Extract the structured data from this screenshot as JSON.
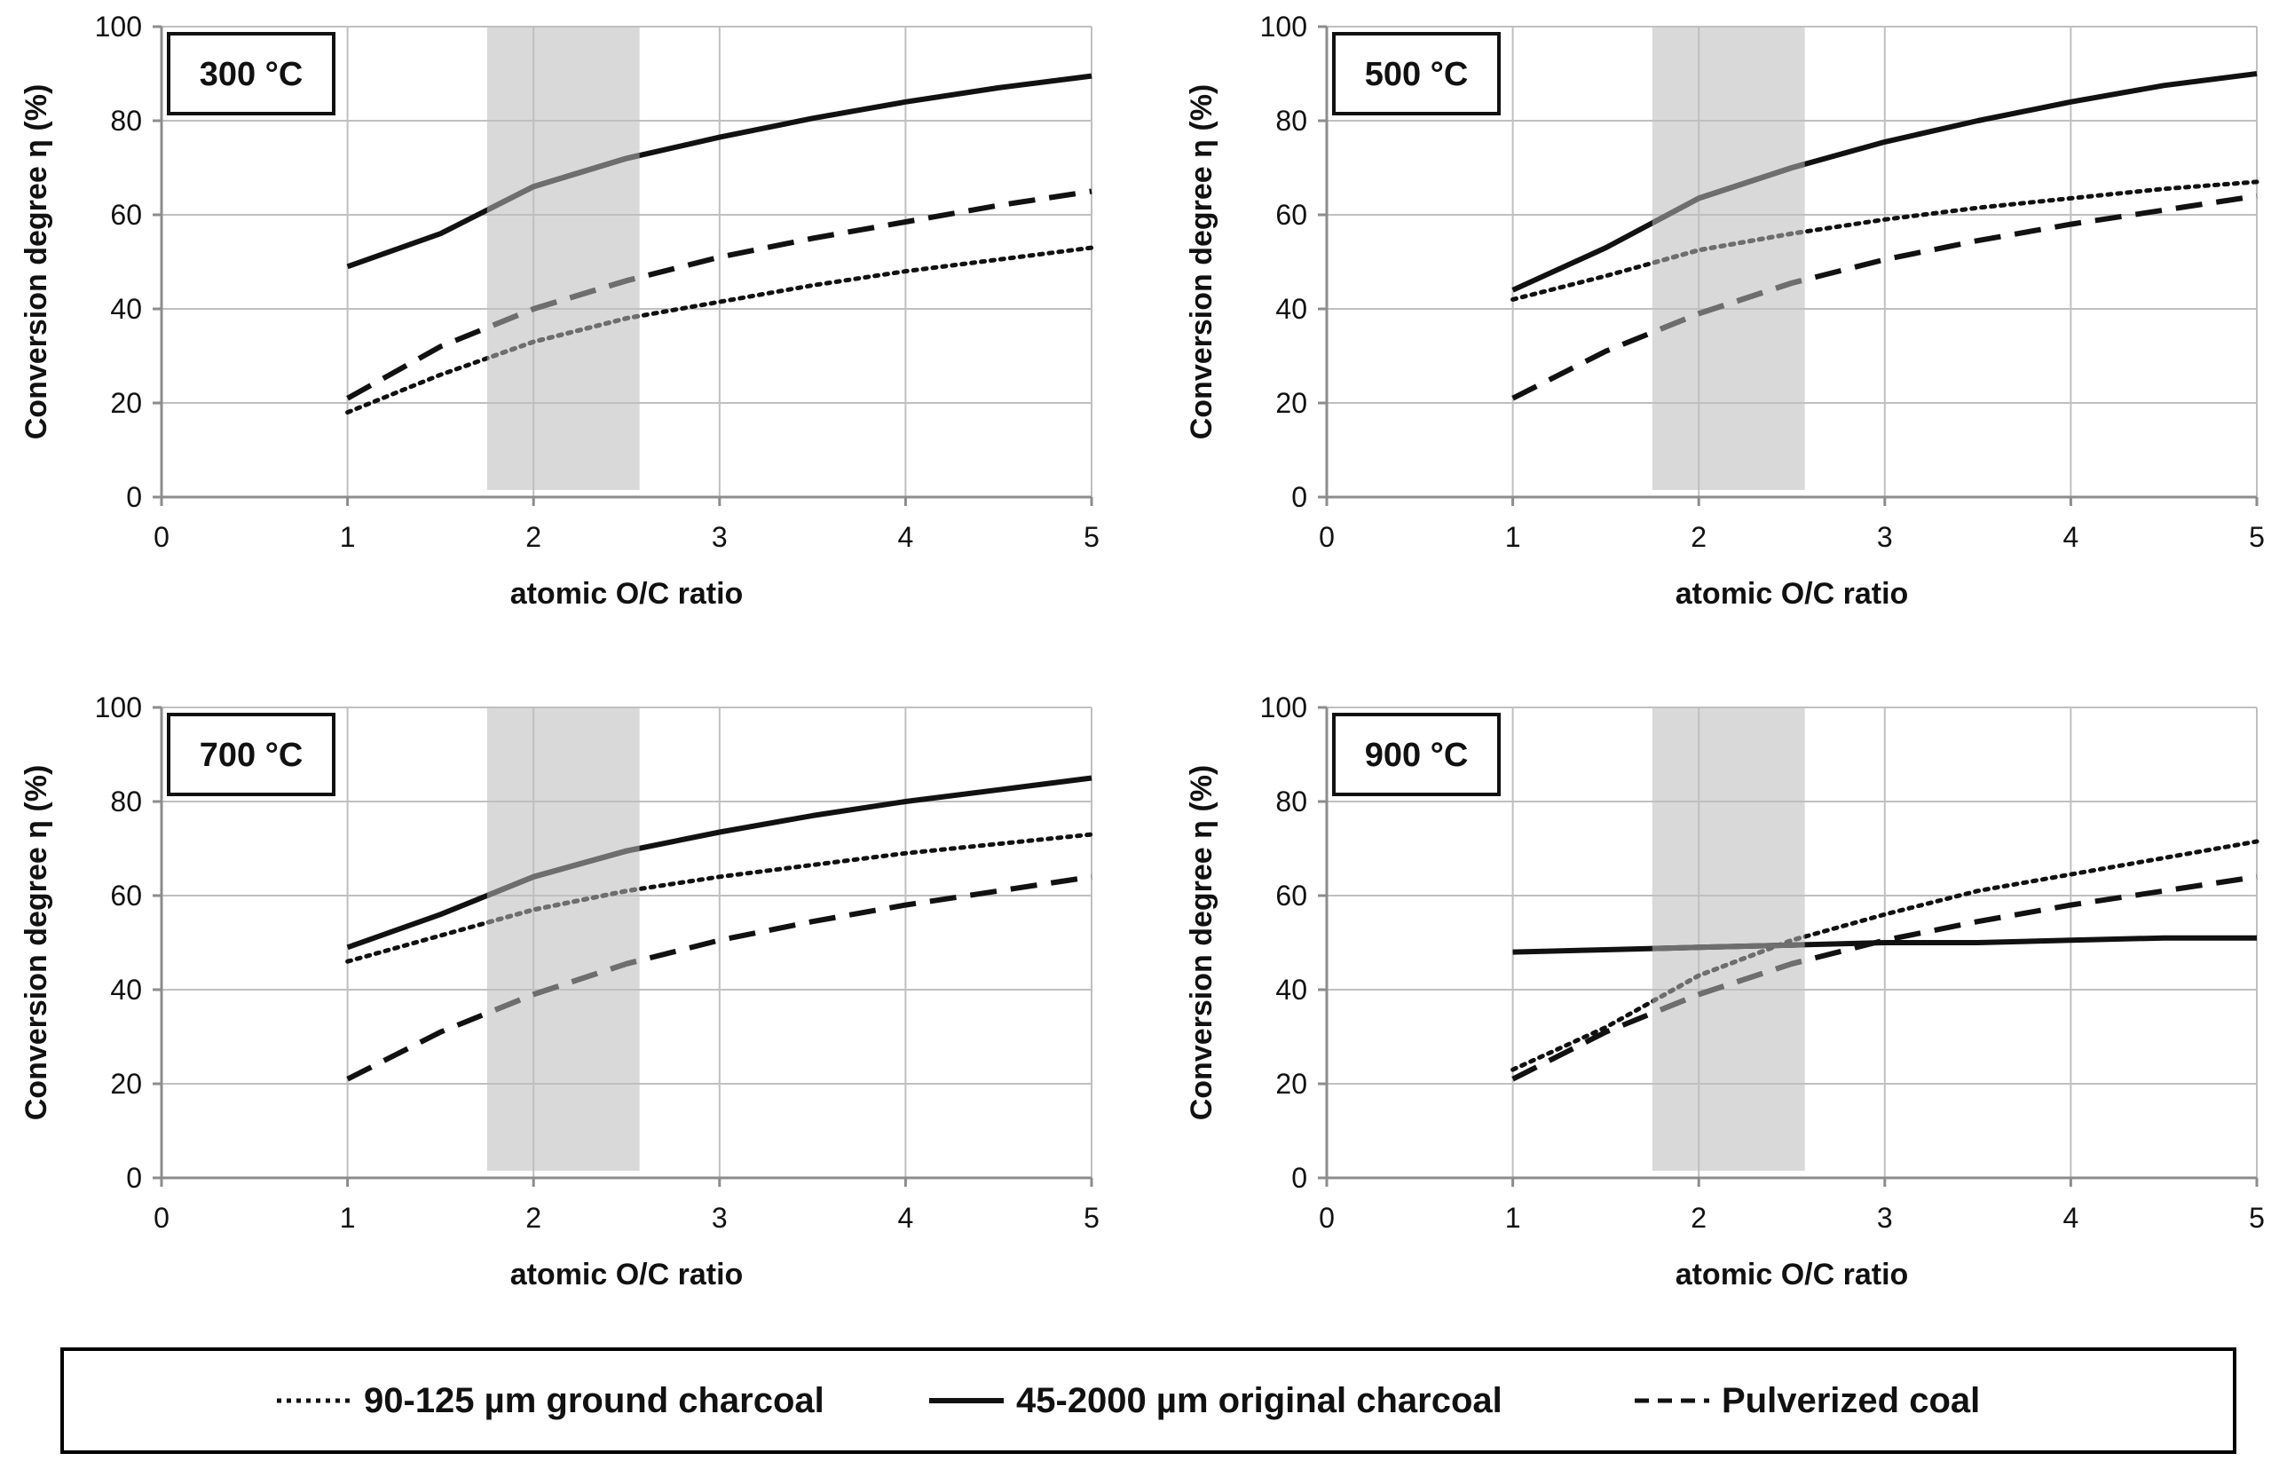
{
  "colors": {
    "line": "#111111",
    "grid": "#bfbfbf",
    "axis": "#8c8c8c",
    "band": "#d9d9d9",
    "in_band_line": "#6e6e6e"
  },
  "legend": {
    "items": [
      {
        "label": "90-125 µm ground charcoal",
        "style": "dotted"
      },
      {
        "label": "45-2000 µm original charcoal",
        "style": "solid"
      },
      {
        "label": "Pulverized coal",
        "style": "dashed"
      }
    ]
  },
  "chart_data": [
    {
      "type": "line",
      "title": "300 °C",
      "xlabel": "atomic  O/C  ratio",
      "ylabel": "Conversion  degree  η (%)",
      "xlim": [
        0,
        5
      ],
      "ylim": [
        0,
        100
      ],
      "xticks": [
        "0",
        "1",
        "2",
        "3",
        "4",
        "5"
      ],
      "yticks": [
        "0",
        "20",
        "40",
        "60",
        "80",
        "100"
      ],
      "shaded_region": [
        1.75,
        2.57
      ],
      "x": [
        1,
        1.5,
        2,
        2.5,
        3,
        3.5,
        4,
        4.5,
        5
      ],
      "series": [
        {
          "name": "90-125 µm ground charcoal",
          "style": "dotted",
          "values": [
            18,
            26,
            33,
            38,
            41.5,
            45,
            48,
            50.5,
            53
          ]
        },
        {
          "name": "45-2000 µm original charcoal",
          "style": "solid",
          "values": [
            49,
            56,
            66,
            72,
            76.5,
            80.5,
            84,
            87,
            89.5
          ]
        },
        {
          "name": "Pulverized coal",
          "style": "dashed",
          "values": [
            21,
            32,
            40,
            46,
            51,
            55,
            58.5,
            62,
            65
          ]
        }
      ]
    },
    {
      "type": "line",
      "title": "500 °C",
      "xlabel": "atomic  O/C  ratio",
      "ylabel": "Conversion  degree  η (%)",
      "xlim": [
        0,
        5
      ],
      "ylim": [
        0,
        100
      ],
      "xticks": [
        "0",
        "1",
        "2",
        "3",
        "4",
        "5"
      ],
      "yticks": [
        "0",
        "20",
        "40",
        "60",
        "80",
        "100"
      ],
      "shaded_region": [
        1.75,
        2.57
      ],
      "x": [
        1,
        1.5,
        2,
        2.5,
        3,
        3.5,
        4,
        4.5,
        5
      ],
      "series": [
        {
          "name": "90-125 µm ground charcoal",
          "style": "dotted",
          "values": [
            42,
            47,
            52.5,
            56,
            59,
            61.5,
            63.5,
            65.5,
            67
          ]
        },
        {
          "name": "45-2000 µm original charcoal",
          "style": "solid",
          "values": [
            44,
            53,
            63.5,
            70,
            75.5,
            80,
            84,
            87.5,
            90
          ]
        },
        {
          "name": "Pulverized coal",
          "style": "dashed",
          "values": [
            21,
            31,
            39,
            45.5,
            50.5,
            54.5,
            58,
            61,
            64
          ]
        }
      ]
    },
    {
      "type": "line",
      "title": "700 °C",
      "xlabel": "atomic  O/C  ratio",
      "ylabel": "Conversion  degree  η (%)",
      "xlim": [
        0,
        5
      ],
      "ylim": [
        0,
        100
      ],
      "xticks": [
        "0",
        "1",
        "2",
        "3",
        "4",
        "5"
      ],
      "yticks": [
        "0",
        "20",
        "40",
        "60",
        "80",
        "100"
      ],
      "shaded_region": [
        1.75,
        2.57
      ],
      "x": [
        1,
        1.5,
        2,
        2.5,
        3,
        3.5,
        4,
        4.5,
        5
      ],
      "series": [
        {
          "name": "90-125 µm ground charcoal",
          "style": "dotted",
          "values": [
            46,
            51.5,
            57,
            61,
            64,
            66.5,
            69,
            71,
            73
          ]
        },
        {
          "name": "45-2000 µm original charcoal",
          "style": "solid",
          "values": [
            49,
            56,
            64,
            69.5,
            73.5,
            77,
            80,
            82.5,
            85
          ]
        },
        {
          "name": "Pulverized coal",
          "style": "dashed",
          "values": [
            21,
            31,
            39,
            45.5,
            50.5,
            54.5,
            58,
            61,
            64
          ]
        }
      ]
    },
    {
      "type": "line",
      "title": "900 °C",
      "xlabel": "atomic  O/C  ratio",
      "ylabel": "Conversion  degree  η (%)",
      "xlim": [
        0,
        5
      ],
      "ylim": [
        0,
        100
      ],
      "xticks": [
        "0",
        "1",
        "2",
        "3",
        "4",
        "5"
      ],
      "yticks": [
        "0",
        "20",
        "40",
        "60",
        "80",
        "100"
      ],
      "shaded_region": [
        1.75,
        2.57
      ],
      "x": [
        1,
        1.5,
        2,
        2.5,
        3,
        3.5,
        4,
        4.5,
        5
      ],
      "series": [
        {
          "name": "90-125 µm ground charcoal",
          "style": "dotted",
          "values": [
            23,
            32,
            43,
            50.5,
            56,
            61,
            64.5,
            68,
            71.5
          ]
        },
        {
          "name": "45-2000 µm original charcoal",
          "style": "solid",
          "values": [
            48,
            48.5,
            49,
            49.5,
            50,
            50,
            50.5,
            51,
            51
          ]
        },
        {
          "name": "Pulverized coal",
          "style": "dashed",
          "values": [
            21,
            31,
            39,
            45.5,
            50.5,
            54.5,
            58,
            61,
            64
          ]
        }
      ]
    }
  ]
}
